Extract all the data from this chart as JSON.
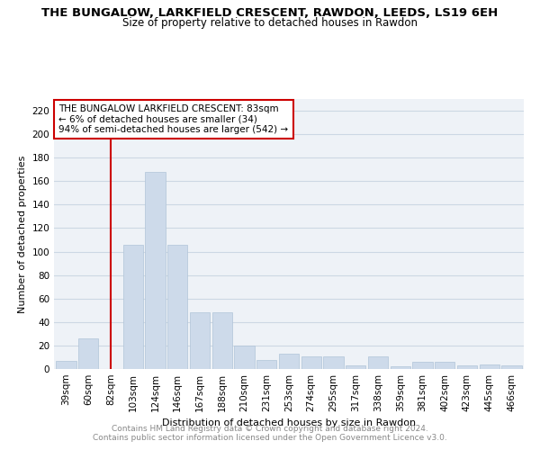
{
  "title": "THE BUNGALOW, LARKFIELD CRESCENT, RAWDON, LEEDS, LS19 6EH",
  "subtitle": "Size of property relative to detached houses in Rawdon",
  "xlabel": "Distribution of detached houses by size in Rawdon",
  "ylabel": "Number of detached properties",
  "categories": [
    "39sqm",
    "60sqm",
    "82sqm",
    "103sqm",
    "124sqm",
    "146sqm",
    "167sqm",
    "188sqm",
    "210sqm",
    "231sqm",
    "253sqm",
    "274sqm",
    "295sqm",
    "317sqm",
    "338sqm",
    "359sqm",
    "381sqm",
    "402sqm",
    "423sqm",
    "445sqm",
    "466sqm"
  ],
  "values": [
    7,
    26,
    0,
    106,
    168,
    106,
    48,
    48,
    20,
    8,
    13,
    11,
    11,
    3,
    11,
    2,
    6,
    6,
    3,
    4,
    3
  ],
  "bar_color": "#cddaea",
  "bar_edge_color": "#b0c4d8",
  "vline_index": 2,
  "vline_color": "#cc0000",
  "annotation_box_color": "#cc0000",
  "annotation_text": "THE BUNGALOW LARKFIELD CRESCENT: 83sqm\n← 6% of detached houses are smaller (34)\n94% of semi-detached houses are larger (542) →",
  "ylim": [
    0,
    230
  ],
  "yticks": [
    0,
    20,
    40,
    60,
    80,
    100,
    120,
    140,
    160,
    180,
    200,
    220
  ],
  "footer_line1": "Contains HM Land Registry data © Crown copyright and database right 2024.",
  "footer_line2": "Contains public sector information licensed under the Open Government Licence v3.0.",
  "title_fontsize": 9.5,
  "subtitle_fontsize": 8.5,
  "annotation_fontsize": 7.5,
  "axis_label_fontsize": 8,
  "tick_fontsize": 7.5,
  "footer_fontsize": 6.5,
  "grid_color": "#ccd8e4",
  "background_color": "#eef2f7"
}
